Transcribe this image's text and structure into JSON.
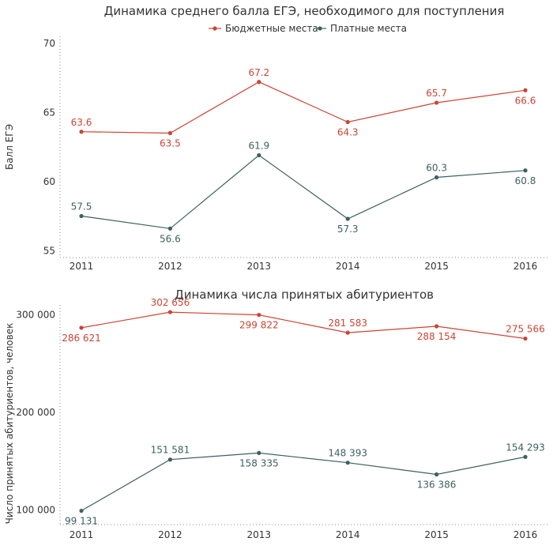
{
  "colors": {
    "budget": "#cc4433",
    "paid": "#3d6060"
  },
  "legend": [
    {
      "name": "Бюджетные места",
      "color": "#cc4433"
    },
    {
      "name": "Платные места",
      "color": "#3d6060"
    }
  ],
  "chart_data": [
    {
      "type": "line",
      "title": "Динамика среднего балла ЕГЭ, необходимого для поступления",
      "xlabel": "",
      "ylabel": "Балл ЕГЭ",
      "x": [
        "2011",
        "2012",
        "2013",
        "2014",
        "2015",
        "2016"
      ],
      "ylim": [
        54.5,
        70.5
      ],
      "yticks": [
        55,
        60,
        65,
        70
      ],
      "ytick_labels": [
        "55",
        "60",
        "65",
        "70"
      ],
      "legend_position": "top-center",
      "grid": false,
      "series": [
        {
          "name": "Бюджетные места",
          "color": "#cc4433",
          "values": [
            63.6,
            63.5,
            67.2,
            64.3,
            65.7,
            66.6
          ],
          "labels": [
            "63.6",
            "63.5",
            "67.2",
            "64.3",
            "65.7",
            "66.6"
          ],
          "label_pos": [
            "above",
            "below",
            "above",
            "below",
            "above",
            "below"
          ]
        },
        {
          "name": "Платные места",
          "color": "#3d6060",
          "values": [
            57.5,
            56.6,
            61.9,
            57.3,
            60.3,
            60.8
          ],
          "labels": [
            "57.5",
            "56.6",
            "61.9",
            "57.3",
            "60.3",
            "60.8"
          ],
          "label_pos": [
            "above",
            "below",
            "above",
            "below",
            "above",
            "below"
          ]
        }
      ]
    },
    {
      "type": "line",
      "title": "Динамика числа принятых абитуриентов",
      "xlabel": "",
      "ylabel": "Число принятых абитуриентов, человек",
      "x": [
        "2011",
        "2012",
        "2013",
        "2014",
        "2015",
        "2016"
      ],
      "ylim": [
        85000,
        310000
      ],
      "yticks": [
        100000,
        200000,
        300000
      ],
      "ytick_labels": [
        "100 000",
        "200 000",
        "300 000"
      ],
      "grid": false,
      "series": [
        {
          "name": "Бюджетные места",
          "color": "#cc4433",
          "values": [
            286621,
            302656,
            299822,
            281583,
            288154,
            275566
          ],
          "labels": [
            "286 621",
            "302 656",
            "299 822",
            "281 583",
            "288 154",
            "275 566"
          ],
          "label_pos": [
            "below",
            "above",
            "below",
            "above",
            "below",
            "above"
          ]
        },
        {
          "name": "Платные места",
          "color": "#3d6060",
          "values": [
            99131,
            151581,
            158335,
            148393,
            136386,
            154293
          ],
          "labels": [
            "99 131",
            "151 581",
            "158 335",
            "148 393",
            "136 386",
            "154 293"
          ],
          "label_pos": [
            "below",
            "above",
            "below",
            "above",
            "below",
            "above"
          ]
        }
      ]
    }
  ]
}
